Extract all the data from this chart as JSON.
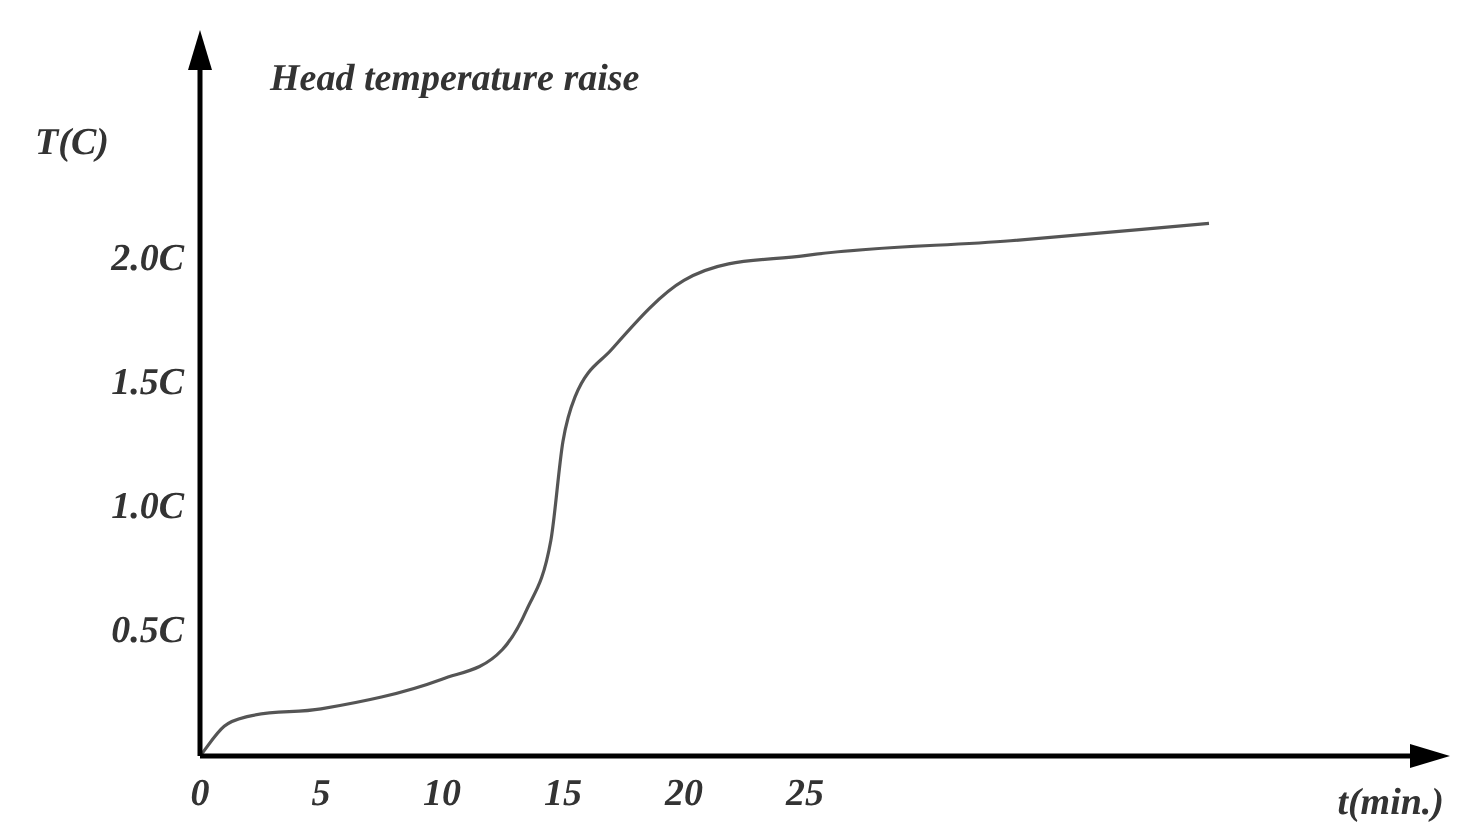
{
  "chart_data": {
    "type": "line",
    "title": "Head temperature raise",
    "xlabel": "t(min.)",
    "ylabel": "T(C)",
    "x": [
      0,
      1,
      2,
      5,
      10,
      12.5,
      13.5,
      14.5,
      15,
      15.5,
      17,
      20,
      25,
      33.5,
      41.7
    ],
    "values": [
      0,
      0.12,
      0.16,
      0.19,
      0.31,
      0.43,
      0.59,
      0.87,
      1.27,
      1.45,
      1.64,
      1.92,
      2.02,
      2.08,
      2.15
    ],
    "color": "#555555",
    "marker": "none",
    "xlim": [
      0,
      51
    ],
    "xticks": [
      0,
      5,
      10,
      15,
      20,
      25
    ],
    "ylim": [
      0,
      2.85
    ],
    "yticks": [
      {
        "value": 0.5,
        "label": "0.5C"
      },
      {
        "value": 1,
        "label": "1.0C"
      },
      {
        "value": 1.5,
        "label": "1.5C"
      },
      {
        "value": 2,
        "label": "2.0C"
      }
    ]
  }
}
